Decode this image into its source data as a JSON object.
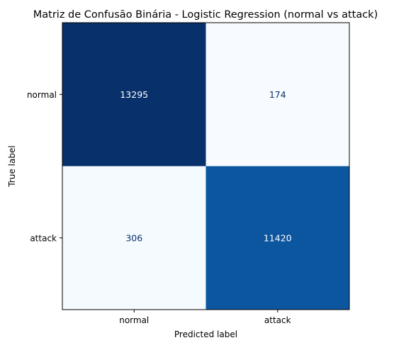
{
  "chart_data": {
    "type": "heatmap",
    "title": "Matriz de Confusão Binária - Logistic Regression (normal vs attack)",
    "xlabel": "Predicted label",
    "ylabel": "True label",
    "x_categories": [
      "normal",
      "attack"
    ],
    "y_categories": [
      "normal",
      "attack"
    ],
    "values": [
      [
        13295,
        174
      ],
      [
        306,
        11420
      ]
    ],
    "colormap": "Blues",
    "colorbar": false,
    "grid": false
  },
  "colors": {
    "low": "#f7fbff",
    "high": "#08306b",
    "text_on_dark": "#ffffff",
    "text_on_light": "#08306b"
  }
}
